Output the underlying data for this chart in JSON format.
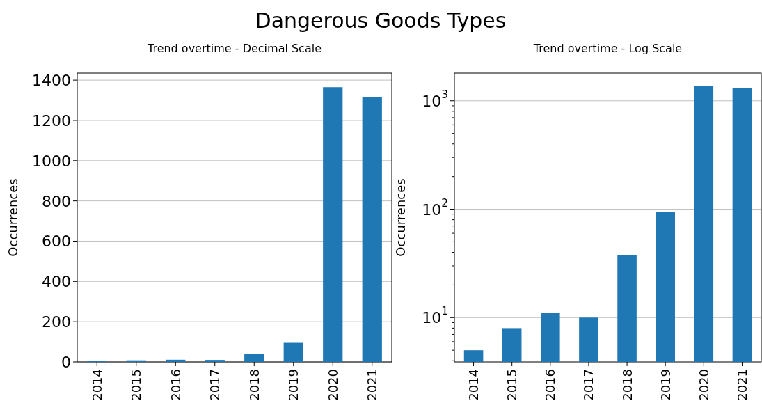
{
  "chart_data": [
    {
      "type": "bar",
      "title": "Dangerous Goods Types",
      "subtitle": "Trend overtime - Decimal Scale",
      "ylabel": "Occurrences",
      "categories": [
        "2014",
        "2015",
        "2016",
        "2017",
        "2018",
        "2019",
        "2020",
        "2021"
      ],
      "values": [
        5,
        8,
        11,
        10,
        38,
        95,
        1365,
        1315
      ],
      "color": "#1f77b4",
      "ylim": [
        0,
        1435
      ],
      "yticks": [
        0,
        200,
        400,
        600,
        800,
        1000,
        1200,
        1400
      ],
      "grid": "y"
    },
    {
      "type": "bar",
      "subtitle": "Trend overtime - Log Scale",
      "ylabel": "Occurrences",
      "categories": [
        "2014",
        "2015",
        "2016",
        "2017",
        "2018",
        "2019",
        "2020",
        "2021"
      ],
      "values": [
        5,
        8,
        11,
        10,
        38,
        95,
        1365,
        1315
      ],
      "color": "#1f77b4",
      "log": true,
      "ylim": [
        3.9,
        1800
      ],
      "yticks": [
        {
          "value": 4,
          "label": null
        },
        {
          "value": 5,
          "label": null
        },
        {
          "value": 6,
          "label": null
        },
        {
          "value": 7,
          "label": null
        },
        {
          "value": 8,
          "label": null
        },
        {
          "value": 9,
          "label": null
        },
        {
          "value": 10,
          "label": "10$^{1}$"
        },
        {
          "value": 20,
          "label": null
        },
        {
          "value": 30,
          "label": null
        },
        {
          "value": 40,
          "label": null
        },
        {
          "value": 50,
          "label": null
        },
        {
          "value": 60,
          "label": null
        },
        {
          "value": 70,
          "label": null
        },
        {
          "value": 80,
          "label": null
        },
        {
          "value": 90,
          "label": null
        },
        {
          "value": 100,
          "label": "10$^{2}$"
        },
        {
          "value": 200,
          "label": null
        },
        {
          "value": 300,
          "label": null
        },
        {
          "value": 400,
          "label": null
        },
        {
          "value": 500,
          "label": null
        },
        {
          "value": 600,
          "label": null
        },
        {
          "value": 700,
          "label": null
        },
        {
          "value": 800,
          "label": null
        },
        {
          "value": 900,
          "label": null
        },
        {
          "value": 1000,
          "label": "10$^{3}$"
        }
      ],
      "grid": "y"
    }
  ]
}
